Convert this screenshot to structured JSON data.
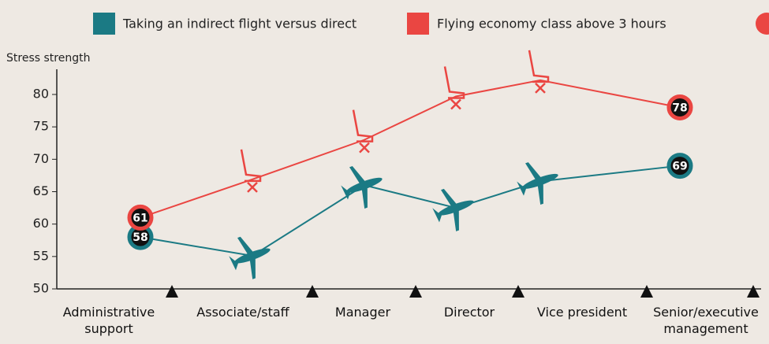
{
  "chart_data": {
    "type": "line",
    "y_label": "Stress strength",
    "categories": [
      "Administrative support",
      "Associate/staff",
      "Manager",
      "Director",
      "Vice president",
      "Senior/executive management"
    ],
    "series": [
      {
        "name": "Taking an indirect flight versus direct",
        "color": "#1b7a84",
        "values": [
          58,
          55.1,
          66,
          62.5,
          66.6,
          69
        ]
      },
      {
        "name": "Flying economy class above 3 hours",
        "color": "#ea4642",
        "values": [
          61,
          66.9,
          73,
          79.7,
          82.2,
          78
        ]
      }
    ],
    "ylim": [
      50,
      83
    ],
    "yticks": [
      50,
      55,
      60,
      65,
      70,
      75,
      80
    ]
  }
}
